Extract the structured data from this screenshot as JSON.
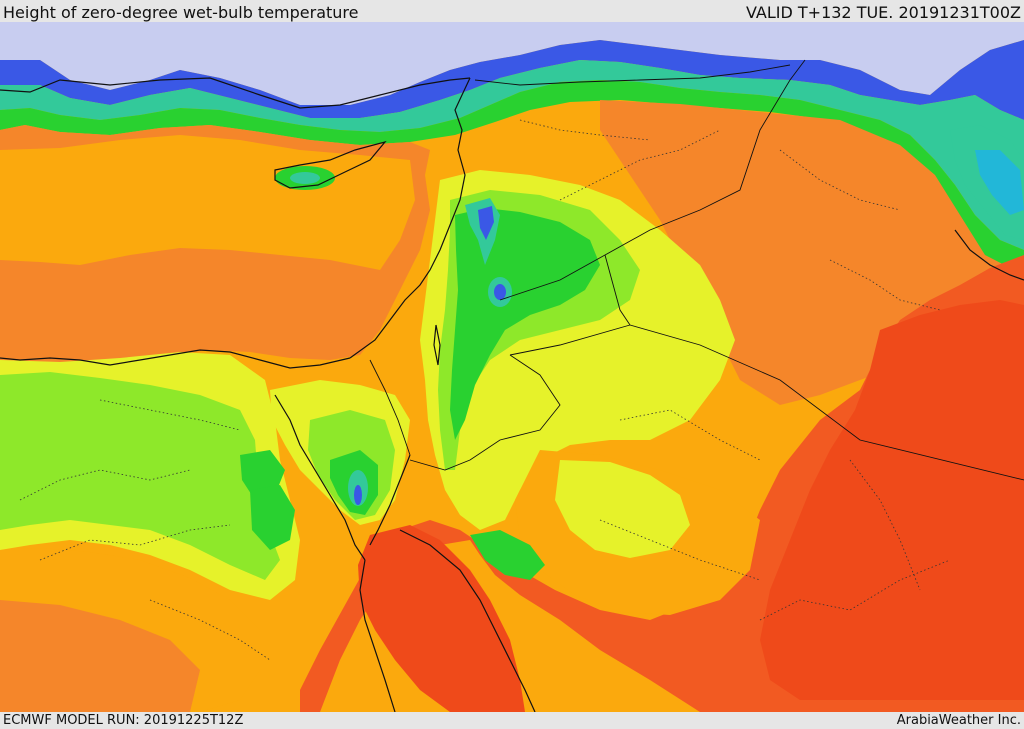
{
  "header": {
    "title": "Height of zero-degree wet-bulb temperature",
    "valid": "VALID T+132 TUE. 20191231T00Z"
  },
  "footer": {
    "model_run": "ECMWF MODEL RUN: 20191225T12Z",
    "credit": "ArabiaWeather Inc."
  },
  "colors": {
    "no_data": "#c8cdf0",
    "blue": "#3a58e6",
    "cyan": "#22b7d8",
    "teal": "#33c99a",
    "green": "#29d130",
    "lime": "#8ee82a",
    "yellow": "#e6f22a",
    "orange_light": "#fba90d",
    "orange": "#f5862a",
    "orange_red": "#f25a22",
    "red": "#ef4a1a"
  }
}
